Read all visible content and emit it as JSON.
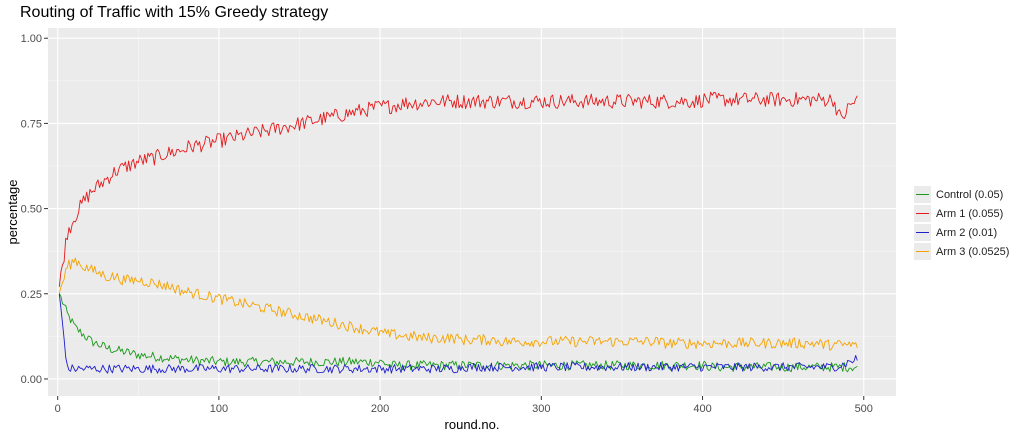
{
  "chart_data": {
    "type": "line",
    "title": "Routing of Traffic with 15% Greedy strategy",
    "xlabel": "round.no.",
    "ylabel": "percentage",
    "xlim": [
      -6,
      520
    ],
    "ylim": [
      -0.05,
      1.03
    ],
    "x_ticks": [
      0,
      100,
      200,
      300,
      400,
      500
    ],
    "x_tick_labels": [
      "0",
      "100",
      "200",
      "300",
      "400",
      "500"
    ],
    "y_ticks": [
      0.0,
      0.25,
      0.5,
      0.75,
      1.0
    ],
    "y_tick_labels": [
      "0.00",
      "0.25",
      "0.50",
      "0.75",
      "1.00"
    ],
    "grid": true,
    "legend_position": "right",
    "x_start": 1,
    "x_step": 5,
    "series": [
      {
        "name": "Control (0.05)",
        "color": "#1a9a1a",
        "values": [
          0.25,
          0.19,
          0.15,
          0.13,
          0.11,
          0.1,
          0.09,
          0.085,
          0.08,
          0.075,
          0.07,
          0.068,
          0.065,
          0.063,
          0.06,
          0.058,
          0.056,
          0.054,
          0.053,
          0.052,
          0.05,
          0.05,
          0.05,
          0.05,
          0.05,
          0.05,
          0.05,
          0.05,
          0.05,
          0.05,
          0.05,
          0.05,
          0.05,
          0.05,
          0.05,
          0.05,
          0.05,
          0.05,
          0.05,
          0.05,
          0.05,
          0.04,
          0.04,
          0.04,
          0.04,
          0.04,
          0.04,
          0.04,
          0.04,
          0.04,
          0.04,
          0.04,
          0.04,
          0.04,
          0.04,
          0.04,
          0.04,
          0.04,
          0.04,
          0.04,
          0.04,
          0.04,
          0.04,
          0.04,
          0.04,
          0.04,
          0.04,
          0.04,
          0.04,
          0.04,
          0.04,
          0.04,
          0.04,
          0.04,
          0.04,
          0.04,
          0.04,
          0.04,
          0.04,
          0.04,
          0.04,
          0.035,
          0.035,
          0.035,
          0.035,
          0.035,
          0.035,
          0.035,
          0.035,
          0.035,
          0.035,
          0.035,
          0.035,
          0.035,
          0.035,
          0.035,
          0.035,
          0.035,
          0.035,
          0.035
        ],
        "noise": 0.014
      },
      {
        "name": "Arm 1 (0.055)",
        "color": "#e41a1c",
        "values": [
          0.27,
          0.43,
          0.48,
          0.52,
          0.55,
          0.57,
          0.59,
          0.61,
          0.62,
          0.63,
          0.64,
          0.645,
          0.65,
          0.66,
          0.665,
          0.67,
          0.68,
          0.685,
          0.69,
          0.695,
          0.7,
          0.705,
          0.71,
          0.715,
          0.72,
          0.725,
          0.73,
          0.735,
          0.74,
          0.745,
          0.75,
          0.755,
          0.76,
          0.765,
          0.77,
          0.775,
          0.78,
          0.785,
          0.79,
          0.795,
          0.8,
          0.8,
          0.805,
          0.81,
          0.81,
          0.81,
          0.815,
          0.815,
          0.815,
          0.815,
          0.815,
          0.815,
          0.815,
          0.815,
          0.815,
          0.815,
          0.815,
          0.815,
          0.815,
          0.815,
          0.815,
          0.815,
          0.815,
          0.815,
          0.815,
          0.815,
          0.815,
          0.815,
          0.815,
          0.815,
          0.815,
          0.815,
          0.815,
          0.815,
          0.815,
          0.815,
          0.815,
          0.815,
          0.815,
          0.815,
          0.82,
          0.82,
          0.82,
          0.82,
          0.82,
          0.82,
          0.82,
          0.82,
          0.82,
          0.82,
          0.82,
          0.82,
          0.82,
          0.82,
          0.82,
          0.82,
          0.82,
          0.76,
          0.8,
          0.82
        ],
        "noise": 0.022
      },
      {
        "name": "Arm 2 (0.01)",
        "color": "#1f1fcc",
        "values": [
          0.25,
          0.03,
          0.03,
          0.03,
          0.03,
          0.03,
          0.03,
          0.03,
          0.03,
          0.03,
          0.03,
          0.03,
          0.03,
          0.03,
          0.03,
          0.03,
          0.03,
          0.03,
          0.03,
          0.03,
          0.03,
          0.03,
          0.03,
          0.03,
          0.03,
          0.03,
          0.03,
          0.03,
          0.03,
          0.03,
          0.03,
          0.03,
          0.03,
          0.03,
          0.03,
          0.03,
          0.03,
          0.03,
          0.03,
          0.03,
          0.03,
          0.03,
          0.03,
          0.03,
          0.03,
          0.03,
          0.03,
          0.03,
          0.03,
          0.03,
          0.035,
          0.035,
          0.035,
          0.035,
          0.035,
          0.035,
          0.035,
          0.035,
          0.035,
          0.035,
          0.035,
          0.035,
          0.035,
          0.035,
          0.035,
          0.035,
          0.035,
          0.035,
          0.035,
          0.035,
          0.035,
          0.035,
          0.035,
          0.035,
          0.035,
          0.035,
          0.035,
          0.035,
          0.035,
          0.035,
          0.035,
          0.035,
          0.035,
          0.035,
          0.035,
          0.035,
          0.035,
          0.035,
          0.035,
          0.035,
          0.035,
          0.035,
          0.035,
          0.035,
          0.035,
          0.035,
          0.035,
          0.04,
          0.05,
          0.06
        ],
        "noise": 0.013
      },
      {
        "name": "Arm 3 (0.0525)",
        "color": "#f5a300",
        "values": [
          0.25,
          0.33,
          0.35,
          0.33,
          0.32,
          0.31,
          0.3,
          0.3,
          0.29,
          0.29,
          0.29,
          0.285,
          0.28,
          0.275,
          0.27,
          0.26,
          0.255,
          0.25,
          0.245,
          0.24,
          0.235,
          0.23,
          0.225,
          0.22,
          0.215,
          0.21,
          0.205,
          0.2,
          0.195,
          0.19,
          0.185,
          0.18,
          0.175,
          0.17,
          0.165,
          0.16,
          0.155,
          0.15,
          0.145,
          0.14,
          0.135,
          0.13,
          0.13,
          0.125,
          0.125,
          0.12,
          0.12,
          0.12,
          0.12,
          0.12,
          0.115,
          0.115,
          0.115,
          0.115,
          0.115,
          0.11,
          0.11,
          0.11,
          0.11,
          0.11,
          0.11,
          0.11,
          0.11,
          0.11,
          0.11,
          0.11,
          0.11,
          0.11,
          0.11,
          0.11,
          0.11,
          0.11,
          0.11,
          0.11,
          0.11,
          0.105,
          0.105,
          0.105,
          0.105,
          0.105,
          0.105,
          0.105,
          0.105,
          0.105,
          0.105,
          0.105,
          0.105,
          0.105,
          0.105,
          0.105,
          0.105,
          0.105,
          0.105,
          0.105,
          0.105,
          0.1,
          0.1,
          0.1,
          0.1,
          0.1
        ],
        "noise": 0.016
      }
    ]
  }
}
